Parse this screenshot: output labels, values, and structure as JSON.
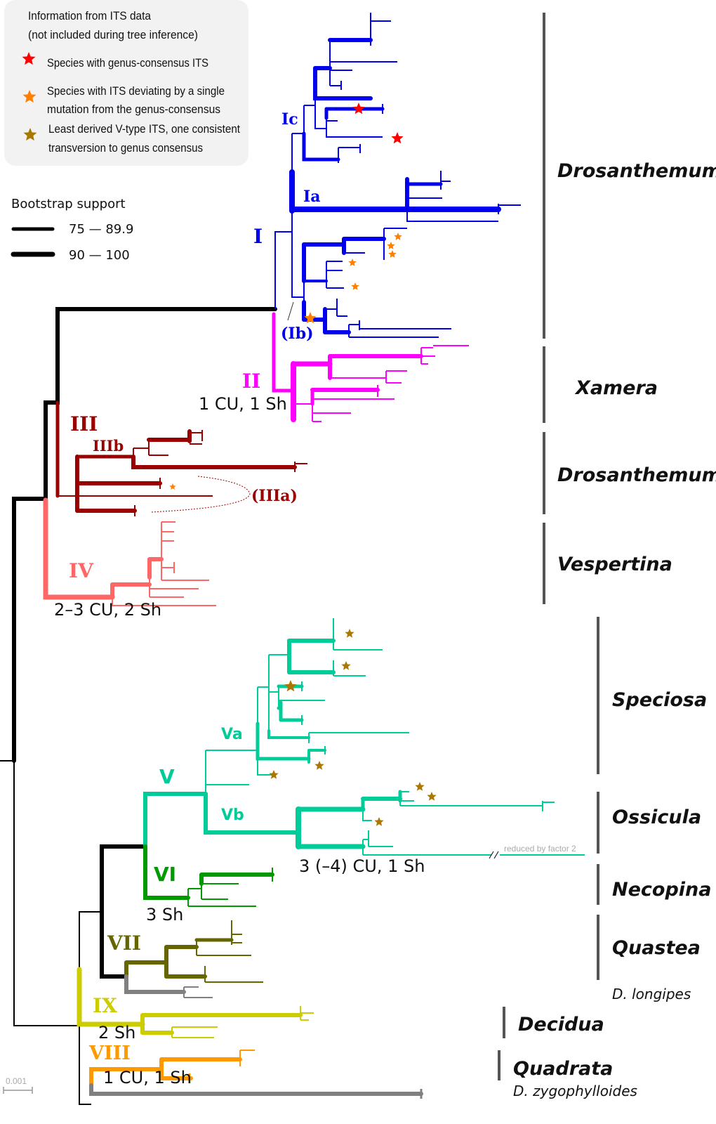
{
  "colors": {
    "I": "#0000ee",
    "II": "#ff00ff",
    "III": "#990000",
    "IV": "#ff6666",
    "V": "#00cc99",
    "VI": "#009900",
    "VII": "#666600",
    "IX": "#cccc00",
    "VIII": "#ff9900",
    "outgroup": "#808080",
    "backbone": "#000000",
    "star_consensus": "#ff0000",
    "star_single": "#ff8000",
    "star_vtype": "#aa7700"
  },
  "legend": {
    "title_line1": "Information from ITS data",
    "title_line2": "(not included during tree inference)",
    "items": [
      {
        "icon": "red-star-icon",
        "line1": "Species with genus-consensus ITS"
      },
      {
        "icon": "orange-star-icon",
        "line1": "Species with ITS deviating by a single",
        "line2": "mutation from the genus-consensus"
      },
      {
        "icon": "brown-star-icon",
        "line1": "Least derived V-type ITS, one consistent",
        "line2": "transversion to genus consensus"
      }
    ]
  },
  "bootstrap": {
    "title": "Bootstrap support",
    "ranges": [
      "75 — 89.9",
      "90 — 100"
    ]
  },
  "clades": {
    "I": "I",
    "Ic": "Ic",
    "Ia": "Ia",
    "Ib": "(Ib)",
    "II": "II",
    "III": "III",
    "IIIb": "IIIb",
    "IIIa": "(IIIa)",
    "IV": "IV",
    "V": "V",
    "Va": "Va",
    "Vb": "Vb",
    "VI": "VI",
    "VII": "VII",
    "IX": "IX",
    "VIII": "VIII"
  },
  "annotations": {
    "II": "1 CU, 1 Sh",
    "IV": "2–3 CU, 2 Sh",
    "V": "3 (–4) CU, 1 Sh",
    "VI": "3 Sh",
    "IX": "2 Sh",
    "VIII": "1 CU, 1 Sh",
    "reduced": "reduced by factor 2"
  },
  "groups": [
    "Drosanthemum",
    "Xamera",
    "Drosanthemum",
    "Vespertina",
    "Speciosa",
    "Ossicula",
    "Necopina",
    "Quastea",
    "D. longipes",
    "Decidua",
    "Quadrata",
    "D. zygophylloides"
  ],
  "scale_bar": "0.001"
}
